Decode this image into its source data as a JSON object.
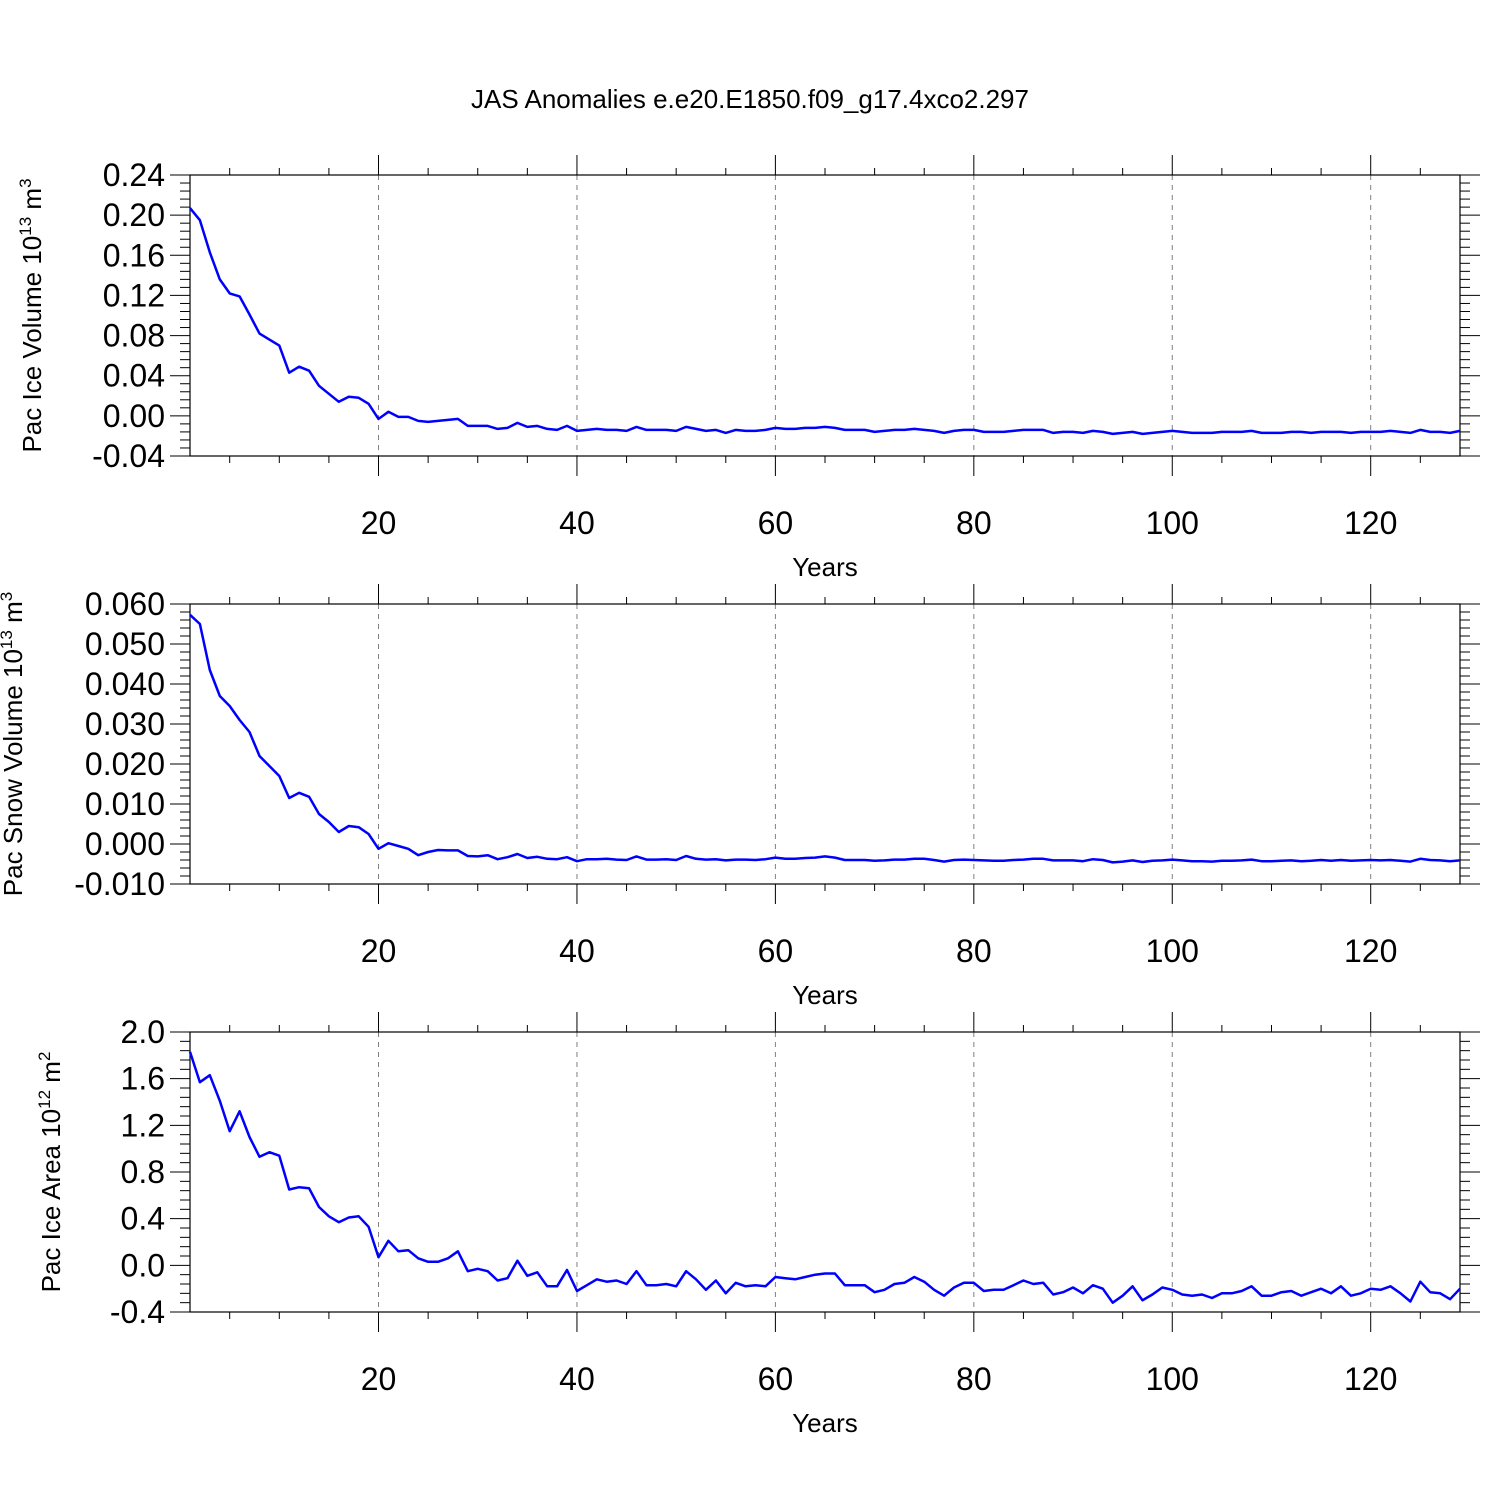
{
  "title": "JAS Anomalies e.e20.E1850.f09_g17.4xco2.297",
  "colors": {
    "series": "#0000ff",
    "axis": "#000000",
    "grid": "#808080"
  },
  "chart_data": [
    {
      "type": "line",
      "ylabel": {
        "main": "Pac Ice Volume 10",
        "exp": "13",
        "unit": " m",
        "unit_exp": "3"
      },
      "xlabel": "Years",
      "xlim": [
        1,
        129
      ],
      "ylim": [
        -0.04,
        0.24
      ],
      "y_ticks": [
        -0.04,
        0.0,
        0.04,
        0.08,
        0.12,
        0.16,
        0.2,
        0.24
      ],
      "y_tick_labels": [
        "-0.04",
        "0.00",
        "0.04",
        "0.08",
        "0.12",
        "0.16",
        "0.20",
        "0.24"
      ],
      "x_ticks": [
        20,
        40,
        60,
        80,
        100,
        120
      ],
      "x_tick_labels": [
        "20",
        "40",
        "60",
        "80",
        "100",
        "120"
      ],
      "grid": "vertical dashed at major x ticks",
      "x": [
        1,
        2,
        3,
        4,
        5,
        6,
        7,
        8,
        9,
        10,
        11,
        12,
        13,
        14,
        15,
        16,
        17,
        18,
        19,
        20,
        21,
        22,
        23,
        24,
        25,
        26,
        27,
        28,
        29,
        30,
        31,
        32,
        33,
        34,
        35,
        36,
        37,
        38,
        39,
        40,
        41,
        42,
        43,
        44,
        45,
        46,
        47,
        48,
        49,
        50,
        51,
        52,
        53,
        54,
        55,
        56,
        57,
        58,
        59,
        60,
        61,
        62,
        63,
        64,
        65,
        66,
        67,
        68,
        69,
        70,
        71,
        72,
        73,
        74,
        75,
        76,
        77,
        78,
        79,
        80,
        81,
        82,
        83,
        84,
        85,
        86,
        87,
        88,
        89,
        90,
        91,
        92,
        93,
        94,
        95,
        96,
        97,
        98,
        99,
        100,
        101,
        102,
        103,
        104,
        105,
        106,
        107,
        108,
        109,
        110,
        111,
        112,
        113,
        114,
        115,
        116,
        117,
        118,
        119,
        120,
        121,
        122,
        123,
        124,
        125,
        126,
        127,
        128,
        129
      ],
      "values": [
        0.207,
        0.195,
        0.163,
        0.136,
        0.122,
        0.119,
        0.101,
        0.082,
        0.076,
        0.07,
        0.043,
        0.049,
        0.045,
        0.03,
        0.022,
        0.014,
        0.019,
        0.018,
        0.012,
        -0.003,
        0.004,
        -0.001,
        -0.001,
        -0.005,
        -0.006,
        -0.005,
        -0.004,
        -0.003,
        -0.01,
        -0.01,
        -0.01,
        -0.013,
        -0.012,
        -0.007,
        -0.011,
        -0.01,
        -0.013,
        -0.014,
        -0.01,
        -0.015,
        -0.014,
        -0.013,
        -0.014,
        -0.014,
        -0.015,
        -0.011,
        -0.014,
        -0.014,
        -0.014,
        -0.015,
        -0.011,
        -0.013,
        -0.015,
        -0.014,
        -0.017,
        -0.014,
        -0.015,
        -0.015,
        -0.014,
        -0.012,
        -0.013,
        -0.013,
        -0.012,
        -0.012,
        -0.011,
        -0.012,
        -0.014,
        -0.014,
        -0.014,
        -0.016,
        -0.015,
        -0.014,
        -0.014,
        -0.013,
        -0.014,
        -0.015,
        -0.017,
        -0.015,
        -0.014,
        -0.014,
        -0.016,
        -0.016,
        -0.016,
        -0.015,
        -0.014,
        -0.014,
        -0.014,
        -0.017,
        -0.016,
        -0.016,
        -0.017,
        -0.015,
        -0.016,
        -0.018,
        -0.017,
        -0.016,
        -0.018,
        -0.017,
        -0.016,
        -0.015,
        -0.016,
        -0.017,
        -0.017,
        -0.017,
        -0.016,
        -0.016,
        -0.016,
        -0.015,
        -0.017,
        -0.017,
        -0.017,
        -0.016,
        -0.016,
        -0.017,
        -0.016,
        -0.016,
        -0.016,
        -0.017,
        -0.016,
        -0.016,
        -0.016,
        -0.015,
        -0.016,
        -0.017,
        -0.014,
        -0.016,
        -0.016,
        -0.017,
        -0.015
      ]
    },
    {
      "type": "line",
      "ylabel": {
        "main": "Pac Snow Volume 10",
        "exp": "13",
        "unit": " m",
        "unit_exp": "3"
      },
      "xlabel": "Years",
      "xlim": [
        1,
        129
      ],
      "ylim": [
        -0.01,
        0.06
      ],
      "y_ticks": [
        -0.01,
        0.0,
        0.01,
        0.02,
        0.03,
        0.04,
        0.05,
        0.06
      ],
      "y_tick_labels": [
        "-0.010",
        "0.000",
        "0.010",
        "0.020",
        "0.030",
        "0.040",
        "0.050",
        "0.060"
      ],
      "x_ticks": [
        20,
        40,
        60,
        80,
        100,
        120
      ],
      "x_tick_labels": [
        "20",
        "40",
        "60",
        "80",
        "100",
        "120"
      ],
      "grid": "vertical dashed at major x ticks",
      "x": [
        1,
        2,
        3,
        4,
        5,
        6,
        7,
        8,
        9,
        10,
        11,
        12,
        13,
        14,
        15,
        16,
        17,
        18,
        19,
        20,
        21,
        22,
        23,
        24,
        25,
        26,
        27,
        28,
        29,
        30,
        31,
        32,
        33,
        34,
        35,
        36,
        37,
        38,
        39,
        40,
        41,
        42,
        43,
        44,
        45,
        46,
        47,
        48,
        49,
        50,
        51,
        52,
        53,
        54,
        55,
        56,
        57,
        58,
        59,
        60,
        61,
        62,
        63,
        64,
        65,
        66,
        67,
        68,
        69,
        70,
        71,
        72,
        73,
        74,
        75,
        76,
        77,
        78,
        79,
        80,
        81,
        82,
        83,
        84,
        85,
        86,
        87,
        88,
        89,
        90,
        91,
        92,
        93,
        94,
        95,
        96,
        97,
        98,
        99,
        100,
        101,
        102,
        103,
        104,
        105,
        106,
        107,
        108,
        109,
        110,
        111,
        112,
        113,
        114,
        115,
        116,
        117,
        118,
        119,
        120,
        121,
        122,
        123,
        124,
        125,
        126,
        127,
        128,
        129
      ],
      "values": [
        0.0573,
        0.055,
        0.0435,
        0.037,
        0.0345,
        0.031,
        0.028,
        0.022,
        0.0195,
        0.017,
        0.0115,
        0.0128,
        0.0118,
        0.0075,
        0.0055,
        0.003,
        0.0045,
        0.0042,
        0.0025,
        -0.0012,
        0.0002,
        -0.0005,
        -0.0012,
        -0.0028,
        -0.002,
        -0.0015,
        -0.0016,
        -0.0016,
        -0.003,
        -0.0031,
        -0.0028,
        -0.0038,
        -0.0033,
        -0.0025,
        -0.0035,
        -0.0032,
        -0.0037,
        -0.0038,
        -0.0033,
        -0.0043,
        -0.0038,
        -0.0038,
        -0.0037,
        -0.0039,
        -0.004,
        -0.0031,
        -0.0039,
        -0.0039,
        -0.0038,
        -0.004,
        -0.003,
        -0.0037,
        -0.0039,
        -0.0038,
        -0.0041,
        -0.0039,
        -0.0039,
        -0.004,
        -0.0038,
        -0.0034,
        -0.0037,
        -0.0037,
        -0.0035,
        -0.0034,
        -0.0031,
        -0.0034,
        -0.004,
        -0.004,
        -0.004,
        -0.0042,
        -0.0041,
        -0.0039,
        -0.0039,
        -0.0037,
        -0.0037,
        -0.004,
        -0.0044,
        -0.004,
        -0.0039,
        -0.004,
        -0.0041,
        -0.0042,
        -0.0042,
        -0.004,
        -0.0039,
        -0.0037,
        -0.0037,
        -0.0041,
        -0.0041,
        -0.0041,
        -0.0043,
        -0.0038,
        -0.004,
        -0.0046,
        -0.0044,
        -0.0041,
        -0.0045,
        -0.0042,
        -0.0041,
        -0.0039,
        -0.0041,
        -0.0043,
        -0.0043,
        -0.0044,
        -0.0042,
        -0.0042,
        -0.0041,
        -0.0039,
        -0.0043,
        -0.0043,
        -0.0042,
        -0.0041,
        -0.0043,
        -0.0042,
        -0.004,
        -0.0042,
        -0.004,
        -0.0042,
        -0.0041,
        -0.004,
        -0.0041,
        -0.004,
        -0.0042,
        -0.0044,
        -0.0037,
        -0.004,
        -0.0041,
        -0.0043,
        -0.0041
      ]
    },
    {
      "type": "line",
      "ylabel": {
        "main": "Pac Ice Area 10",
        "exp": "12",
        "unit": " m",
        "unit_exp": "2"
      },
      "xlabel": "Years",
      "xlim": [
        1,
        129
      ],
      "ylim": [
        -0.4,
        2.0
      ],
      "y_ticks": [
        -0.4,
        0.0,
        0.4,
        0.8,
        1.2,
        1.6,
        2.0
      ],
      "y_tick_labels": [
        "-0.4",
        "0.0",
        "0.4",
        "0.8",
        "1.2",
        "1.6",
        "2.0"
      ],
      "x_ticks": [
        20,
        40,
        60,
        80,
        100,
        120
      ],
      "x_tick_labels": [
        "20",
        "40",
        "60",
        "80",
        "100",
        "120"
      ],
      "grid": "vertical dashed at major x ticks",
      "x": [
        1,
        2,
        3,
        4,
        5,
        6,
        7,
        8,
        9,
        10,
        11,
        12,
        13,
        14,
        15,
        16,
        17,
        18,
        19,
        20,
        21,
        22,
        23,
        24,
        25,
        26,
        27,
        28,
        29,
        30,
        31,
        32,
        33,
        34,
        35,
        36,
        37,
        38,
        39,
        40,
        41,
        42,
        43,
        44,
        45,
        46,
        47,
        48,
        49,
        50,
        51,
        52,
        53,
        54,
        55,
        56,
        57,
        58,
        59,
        60,
        61,
        62,
        63,
        64,
        65,
        66,
        67,
        68,
        69,
        70,
        71,
        72,
        73,
        74,
        75,
        76,
        77,
        78,
        79,
        80,
        81,
        82,
        83,
        84,
        85,
        86,
        87,
        88,
        89,
        90,
        91,
        92,
        93,
        94,
        95,
        96,
        97,
        98,
        99,
        100,
        101,
        102,
        103,
        104,
        105,
        106,
        107,
        108,
        109,
        110,
        111,
        112,
        113,
        114,
        115,
        116,
        117,
        118,
        119,
        120,
        121,
        122,
        123,
        124,
        125,
        126,
        127,
        128,
        129
      ],
      "values": [
        1.83,
        1.57,
        1.63,
        1.41,
        1.15,
        1.32,
        1.1,
        0.93,
        0.97,
        0.94,
        0.65,
        0.67,
        0.66,
        0.5,
        0.42,
        0.37,
        0.41,
        0.42,
        0.33,
        0.07,
        0.21,
        0.12,
        0.13,
        0.06,
        0.03,
        0.03,
        0.06,
        0.12,
        -0.05,
        -0.03,
        -0.05,
        -0.13,
        -0.11,
        0.04,
        -0.09,
        -0.06,
        -0.18,
        -0.18,
        -0.04,
        -0.22,
        -0.17,
        -0.12,
        -0.14,
        -0.13,
        -0.16,
        -0.05,
        -0.17,
        -0.17,
        -0.16,
        -0.18,
        -0.05,
        -0.12,
        -0.21,
        -0.13,
        -0.24,
        -0.15,
        -0.18,
        -0.17,
        -0.18,
        -0.1,
        -0.11,
        -0.12,
        -0.1,
        -0.08,
        -0.07,
        -0.07,
        -0.17,
        -0.17,
        -0.17,
        -0.23,
        -0.21,
        -0.16,
        -0.15,
        -0.1,
        -0.14,
        -0.21,
        -0.26,
        -0.19,
        -0.15,
        -0.15,
        -0.22,
        -0.21,
        -0.21,
        -0.17,
        -0.13,
        -0.16,
        -0.15,
        -0.25,
        -0.23,
        -0.19,
        -0.24,
        -0.17,
        -0.2,
        -0.32,
        -0.26,
        -0.18,
        -0.3,
        -0.25,
        -0.19,
        -0.21,
        -0.25,
        -0.26,
        -0.25,
        -0.28,
        -0.24,
        -0.24,
        -0.22,
        -0.18,
        -0.26,
        -0.26,
        -0.23,
        -0.22,
        -0.26,
        -0.23,
        -0.2,
        -0.24,
        -0.18,
        -0.26,
        -0.24,
        -0.2,
        -0.21,
        -0.18,
        -0.24,
        -0.31,
        -0.14,
        -0.23,
        -0.24,
        -0.29,
        -0.2
      ]
    }
  ]
}
